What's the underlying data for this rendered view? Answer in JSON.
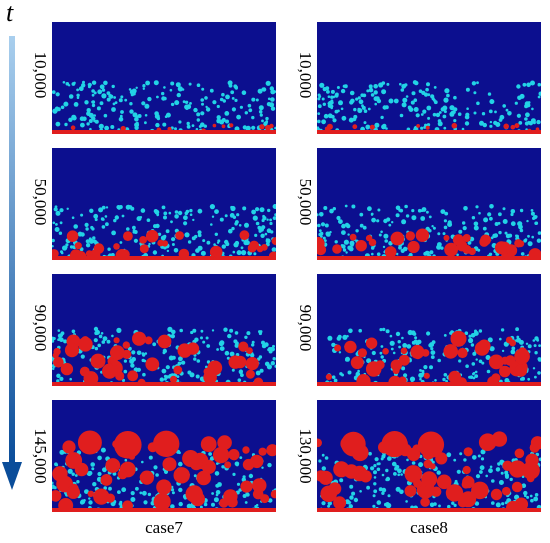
{
  "axis": {
    "label": "t"
  },
  "columns": [
    {
      "case_label": "case7",
      "steps": [
        "10,000",
        "50,000",
        "90,000",
        "145,000"
      ]
    },
    {
      "case_label": "case8",
      "steps": [
        "10,000",
        "50,000",
        "90,000",
        "130,000"
      ]
    }
  ],
  "colors": {
    "background": "#0c0f8f",
    "droplet": "#22d3e6",
    "solid": "#e01e1e",
    "arrow_top": "#a9cfee",
    "arrow_bottom": "#0a4d9a"
  }
}
